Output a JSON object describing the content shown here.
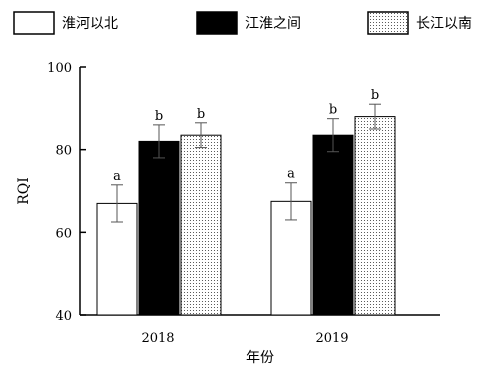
{
  "chart_data": {
    "type": "bar",
    "categories": [
      "2018",
      "2019"
    ],
    "series": [
      {
        "name": "淮河以北",
        "values": [
          67,
          67.5
        ],
        "errors": [
          4.5,
          4.5
        ],
        "letters": [
          "a",
          "a"
        ],
        "fill": "#ffffff"
      },
      {
        "name": "江淮之间",
        "values": [
          82,
          83.5
        ],
        "errors": [
          4,
          4
        ],
        "letters": [
          "b",
          "b"
        ],
        "fill": "#000000"
      },
      {
        "name": "长江以南",
        "values": [
          83.5,
          88
        ],
        "errors": [
          3,
          3
        ],
        "letters": [
          "b",
          "b"
        ],
        "fill": "dotted"
      }
    ],
    "xlabel": "年份",
    "ylabel": "RQI",
    "ylim": [
      40,
      100
    ],
    "yticks": [
      40,
      60,
      80,
      100
    ],
    "grid": false,
    "legend": "top"
  }
}
